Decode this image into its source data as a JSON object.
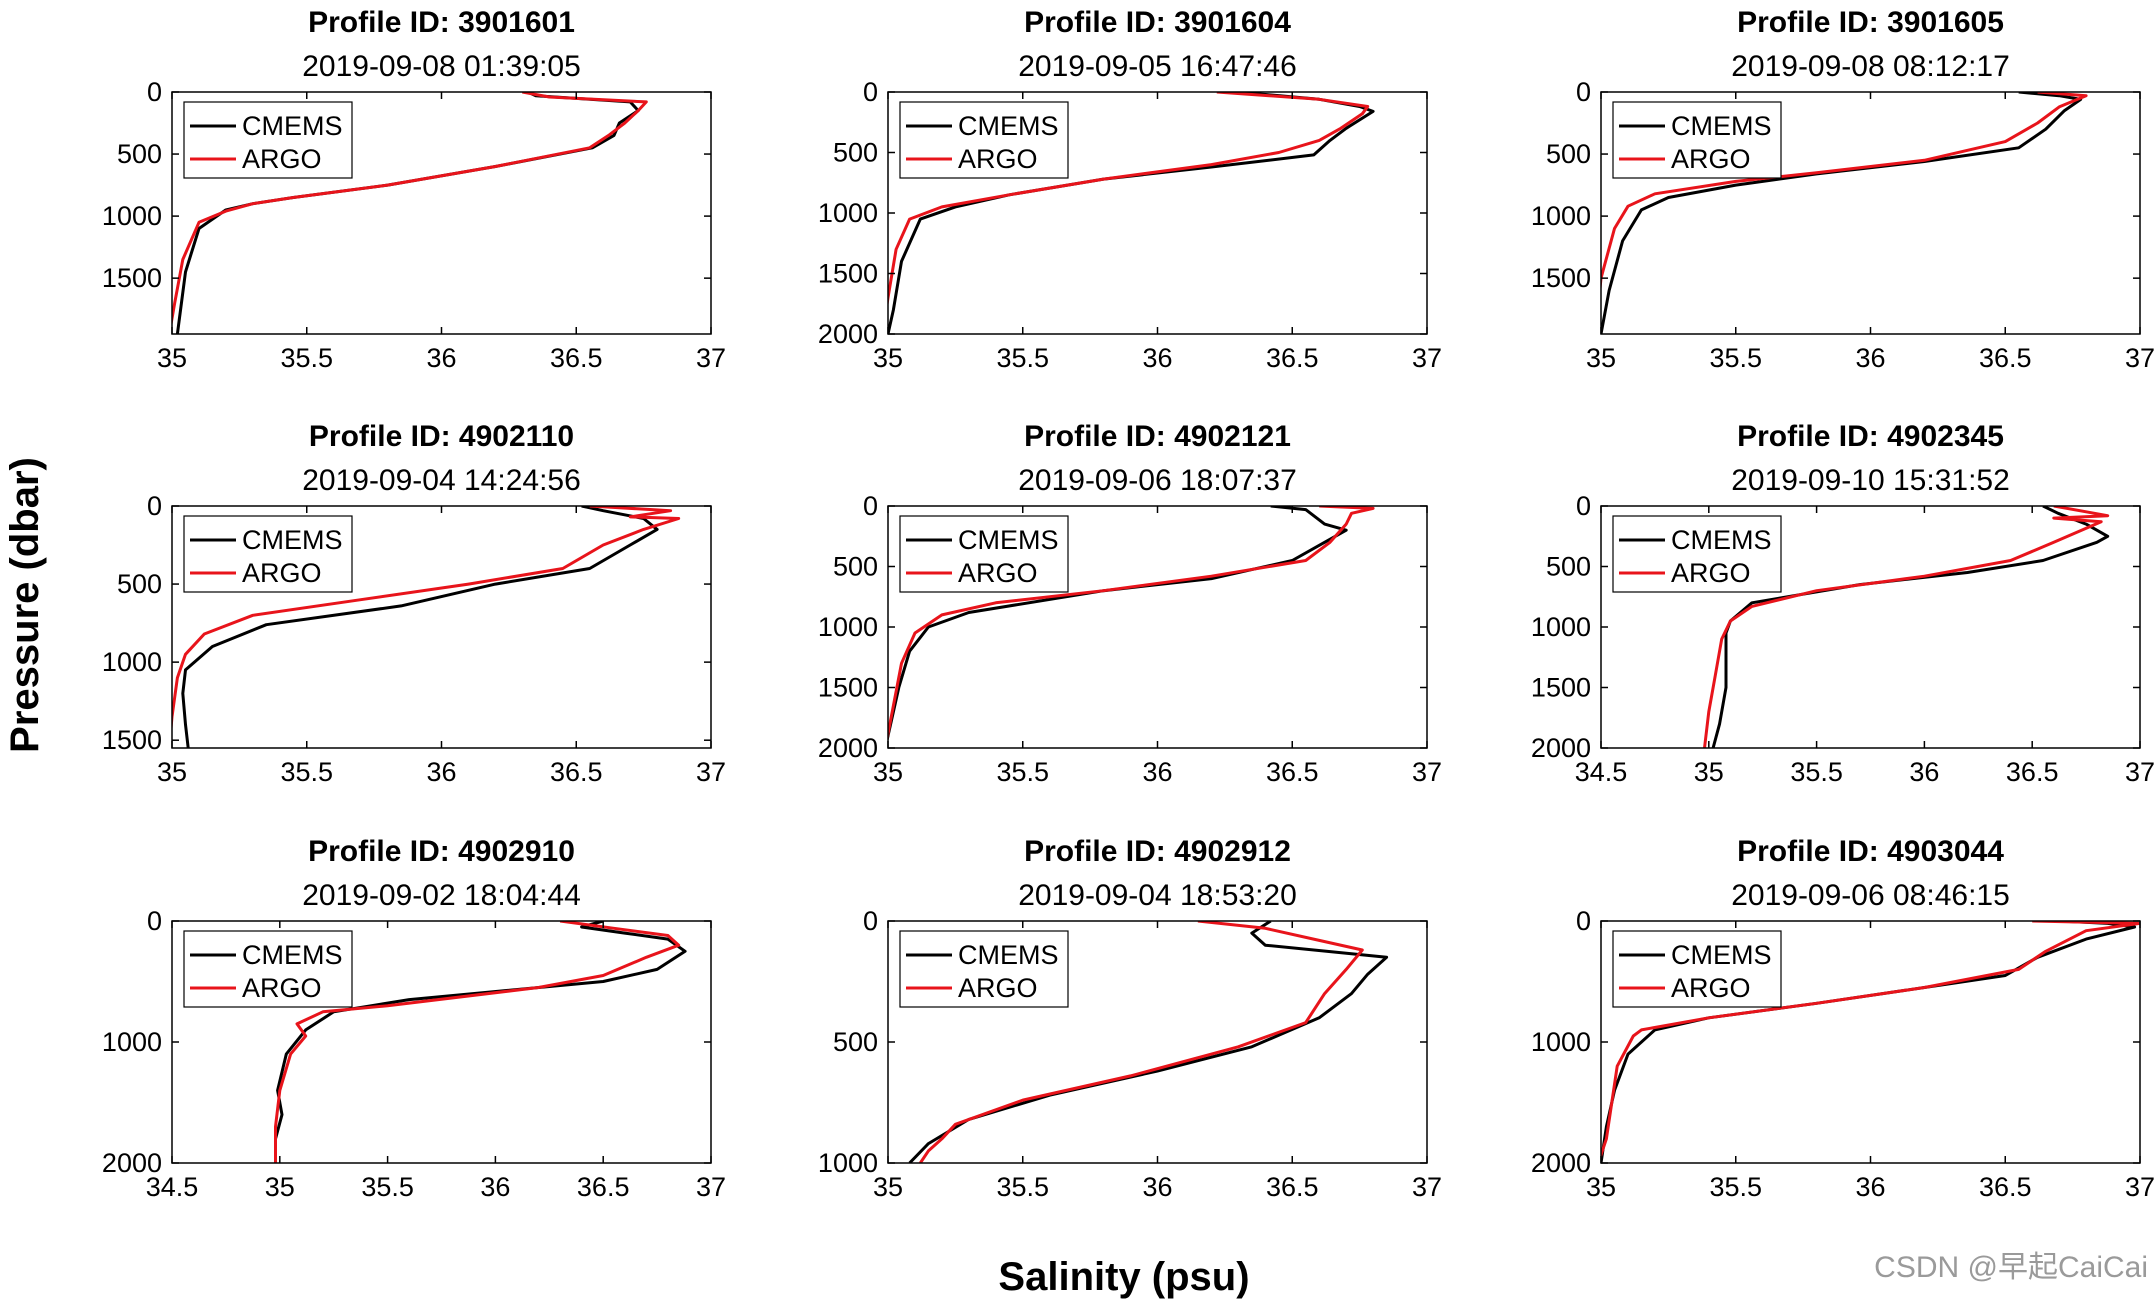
{
  "figure": {
    "ylabel": "Pressure (dbar)",
    "xlabel": "Salinity (psu)",
    "watermark": "CSDN @早起CaiCai",
    "colors": {
      "CMEMS": "#000000",
      "ARGO": "#e8141b",
      "axes": "#000000"
    }
  },
  "chart_data": [
    {
      "type": "line",
      "title": "Profile ID: 3901601",
      "subtitle": "2019-09-08 01:39:05",
      "xlim": [
        35,
        37
      ],
      "ylim": [
        0,
        1950
      ],
      "y_reversed": true,
      "xticks": [
        35,
        35.5,
        36,
        36.5,
        37
      ],
      "yticks": [
        0,
        500,
        1000,
        1500
      ],
      "legend_position": "top-left",
      "series": [
        {
          "name": "CMEMS",
          "x": [
            36.32,
            36.35,
            36.7,
            36.73,
            36.66,
            36.64,
            36.56,
            36.2,
            35.8,
            35.45,
            35.3,
            35.2,
            35.1,
            35.05,
            35.02
          ],
          "y": [
            0,
            30,
            80,
            150,
            250,
            350,
            450,
            600,
            750,
            850,
            900,
            950,
            1100,
            1450,
            1950
          ]
        },
        {
          "name": "ARGO",
          "x": [
            36.3,
            36.4,
            36.76,
            36.73,
            36.68,
            36.62,
            36.55,
            36.2,
            35.8,
            35.45,
            35.3,
            35.2,
            35.1,
            35.04,
            35.01,
            34.99
          ],
          "y": [
            0,
            40,
            80,
            150,
            250,
            350,
            450,
            600,
            750,
            850,
            900,
            960,
            1050,
            1350,
            1700,
            1950
          ]
        }
      ]
    },
    {
      "type": "line",
      "title": "Profile ID: 3901604",
      "subtitle": "2019-09-05 16:47:46",
      "xlim": [
        35,
        37
      ],
      "ylim": [
        0,
        2000
      ],
      "y_reversed": true,
      "xticks": [
        35,
        35.5,
        36,
        36.5,
        37
      ],
      "yticks": [
        0,
        500,
        1000,
        1500,
        2000
      ],
      "legend_position": "top-left",
      "series": [
        {
          "name": "CMEMS",
          "x": [
            36.3,
            36.6,
            36.75,
            36.8,
            36.7,
            36.64,
            36.58,
            36.2,
            35.8,
            35.45,
            35.25,
            35.12,
            35.05,
            35.02,
            35.0
          ],
          "y": [
            0,
            60,
            120,
            160,
            300,
            400,
            520,
            620,
            720,
            850,
            950,
            1050,
            1400,
            1800,
            2000
          ]
        },
        {
          "name": "ARGO",
          "x": [
            36.22,
            36.6,
            36.78,
            36.76,
            36.68,
            36.6,
            36.45,
            36.2,
            35.8,
            35.45,
            35.2,
            35.08,
            35.03,
            35.0,
            34.98
          ],
          "y": [
            0,
            60,
            120,
            180,
            300,
            400,
            500,
            600,
            720,
            850,
            950,
            1050,
            1300,
            1700,
            2000
          ]
        }
      ]
    },
    {
      "type": "line",
      "title": "Profile ID: 3901605",
      "subtitle": "2019-09-08 08:12:17",
      "xlim": [
        35,
        37
      ],
      "ylim": [
        0,
        1950
      ],
      "y_reversed": true,
      "xticks": [
        35,
        35.5,
        36,
        36.5,
        37
      ],
      "yticks": [
        0,
        500,
        1000,
        1500
      ],
      "legend_position": "top-left",
      "series": [
        {
          "name": "CMEMS",
          "x": [
            36.55,
            36.7,
            36.78,
            36.72,
            36.65,
            36.55,
            36.2,
            35.8,
            35.5,
            35.25,
            35.15,
            35.08,
            35.03,
            35.0
          ],
          "y": [
            0,
            30,
            60,
            150,
            300,
            450,
            560,
            660,
            750,
            850,
            950,
            1200,
            1600,
            1950
          ]
        },
        {
          "name": "ARGO",
          "x": [
            36.62,
            36.8,
            36.7,
            36.62,
            36.5,
            36.2,
            35.8,
            35.5,
            35.2,
            35.1,
            35.05,
            35.0,
            34.98
          ],
          "y": [
            0,
            30,
            120,
            250,
            400,
            550,
            650,
            720,
            820,
            920,
            1100,
            1500,
            1950
          ]
        }
      ]
    },
    {
      "type": "line",
      "title": "Profile ID: 4902110",
      "subtitle": "2019-09-04 14:24:56",
      "xlim": [
        35,
        37
      ],
      "ylim": [
        0,
        1550
      ],
      "y_reversed": true,
      "xticks": [
        35,
        35.5,
        36,
        36.5,
        37
      ],
      "yticks": [
        0,
        500,
        1000,
        1500
      ],
      "legend_position": "top-left",
      "series": [
        {
          "name": "CMEMS",
          "x": [
            36.52,
            36.6,
            36.75,
            36.8,
            36.7,
            36.55,
            36.2,
            35.85,
            35.35,
            35.15,
            35.05,
            35.04,
            35.05,
            35.06
          ],
          "y": [
            0,
            30,
            80,
            150,
            250,
            400,
            500,
            640,
            760,
            900,
            1050,
            1200,
            1400,
            1550
          ]
        },
        {
          "name": "ARGO",
          "x": [
            36.55,
            36.85,
            36.7,
            36.88,
            36.75,
            36.6,
            36.45,
            36.1,
            35.7,
            35.3,
            35.12,
            35.05,
            35.02,
            35.0,
            34.99
          ],
          "y": [
            0,
            30,
            70,
            80,
            150,
            250,
            400,
            500,
            600,
            700,
            820,
            950,
            1100,
            1350,
            1550
          ]
        }
      ]
    },
    {
      "type": "line",
      "title": "Profile ID: 4902121",
      "subtitle": "2019-09-06 18:07:37",
      "xlim": [
        35,
        37
      ],
      "ylim": [
        0,
        2000
      ],
      "y_reversed": true,
      "xticks": [
        35,
        35.5,
        36,
        36.5,
        37
      ],
      "yticks": [
        0,
        500,
        1000,
        1500,
        2000
      ],
      "legend_position": "top-left",
      "series": [
        {
          "name": "CMEMS",
          "x": [
            36.42,
            36.55,
            36.62,
            36.7,
            36.62,
            36.5,
            36.2,
            35.8,
            35.3,
            35.15,
            35.08,
            35.04,
            35.01,
            34.99
          ],
          "y": [
            0,
            30,
            150,
            200,
            300,
            450,
            600,
            700,
            880,
            1000,
            1200,
            1500,
            1800,
            2000
          ]
        },
        {
          "name": "ARGO",
          "x": [
            36.6,
            36.8,
            36.72,
            36.7,
            36.64,
            36.55,
            36.2,
            35.8,
            35.4,
            35.2,
            35.1,
            35.05,
            35.02,
            34.99
          ],
          "y": [
            0,
            20,
            60,
            150,
            300,
            450,
            580,
            700,
            800,
            900,
            1050,
            1300,
            1650,
            2000
          ]
        }
      ]
    },
    {
      "type": "line",
      "title": "Profile ID: 4902345",
      "subtitle": "2019-09-10 15:31:52",
      "xlim": [
        34.5,
        37
      ],
      "ylim": [
        0,
        2000
      ],
      "y_reversed": true,
      "xticks": [
        34.5,
        35,
        35.5,
        36,
        36.5,
        37
      ],
      "yticks": [
        0,
        500,
        1000,
        1500,
        2000
      ],
      "legend_position": "top-left",
      "series": [
        {
          "name": "CMEMS",
          "x": [
            36.55,
            36.62,
            36.75,
            36.85,
            36.8,
            36.55,
            36.2,
            35.7,
            35.2,
            35.1,
            35.08,
            35.08,
            35.05,
            35.02
          ],
          "y": [
            0,
            60,
            150,
            250,
            300,
            450,
            550,
            650,
            800,
            950,
            1050,
            1500,
            1800,
            2000
          ]
        },
        {
          "name": "ARGO",
          "x": [
            36.6,
            36.85,
            36.6,
            36.82,
            36.6,
            36.4,
            36.0,
            35.5,
            35.2,
            35.1,
            35.06,
            35.03,
            35.0,
            34.98
          ],
          "y": [
            0,
            80,
            100,
            130,
            300,
            450,
            580,
            700,
            830,
            950,
            1100,
            1400,
            1700,
            2000
          ]
        }
      ]
    },
    {
      "type": "line",
      "title": "Profile ID: 4902910",
      "subtitle": "2019-09-02 18:04:44",
      "xlim": [
        34.5,
        37
      ],
      "ylim": [
        0,
        2000
      ],
      "y_reversed": true,
      "xticks": [
        34.5,
        35,
        35.5,
        36,
        36.5,
        37
      ],
      "yticks": [
        0,
        1000,
        2000
      ],
      "legend_position": "top-left",
      "series": [
        {
          "name": "CMEMS",
          "x": [
            36.5,
            36.4,
            36.6,
            36.8,
            36.88,
            36.75,
            36.5,
            35.6,
            35.25,
            35.12,
            35.03,
            34.99,
            35.01,
            34.98,
            34.98
          ],
          "y": [
            0,
            50,
            100,
            150,
            250,
            400,
            500,
            650,
            750,
            900,
            1100,
            1400,
            1600,
            1800,
            2000
          ]
        },
        {
          "name": "ARGO",
          "x": [
            36.3,
            36.55,
            36.8,
            36.85,
            36.7,
            36.5,
            36.2,
            35.5,
            35.2,
            35.08,
            35.12,
            35.05,
            35.0,
            34.98,
            34.98
          ],
          "y": [
            0,
            60,
            120,
            200,
            300,
            450,
            550,
            700,
            750,
            850,
            950,
            1100,
            1400,
            1700,
            2000
          ]
        }
      ]
    },
    {
      "type": "line",
      "title": "Profile ID: 4902912",
      "subtitle": "2019-09-04 18:53:20",
      "xlim": [
        35,
        37
      ],
      "ylim": [
        0,
        1000
      ],
      "y_reversed": true,
      "xticks": [
        35,
        35.5,
        36,
        36.5,
        37
      ],
      "yticks": [
        0,
        500,
        1000
      ],
      "legend_position": "top-left",
      "series": [
        {
          "name": "CMEMS",
          "x": [
            36.42,
            36.35,
            36.4,
            36.85,
            36.78,
            36.72,
            36.6,
            36.35,
            36.0,
            35.6,
            35.3,
            35.15,
            35.08
          ],
          "y": [
            0,
            50,
            100,
            150,
            220,
            300,
            400,
            520,
            620,
            720,
            820,
            920,
            1000
          ]
        },
        {
          "name": "ARGO",
          "x": [
            36.15,
            36.4,
            36.6,
            36.76,
            36.7,
            36.62,
            36.55,
            36.3,
            35.9,
            35.5,
            35.25,
            35.2,
            35.15,
            35.12
          ],
          "y": [
            0,
            30,
            80,
            120,
            200,
            300,
            420,
            520,
            640,
            740,
            840,
            900,
            950,
            1000
          ]
        }
      ]
    },
    {
      "type": "line",
      "title": "Profile ID: 4903044",
      "subtitle": "2019-09-06 08:46:15",
      "xlim": [
        35,
        37
      ],
      "ylim": [
        0,
        2000
      ],
      "y_reversed": true,
      "xticks": [
        35,
        35.5,
        36,
        36.5,
        37
      ],
      "yticks": [
        0,
        1000,
        2000
      ],
      "legend_position": "top-left",
      "series": [
        {
          "name": "CMEMS",
          "x": [
            36.7,
            36.88,
            36.98,
            36.8,
            36.62,
            36.5,
            36.2,
            35.8,
            35.4,
            35.2,
            35.1,
            35.05,
            35.02,
            35.0
          ],
          "y": [
            0,
            20,
            50,
            150,
            300,
            450,
            550,
            680,
            800,
            900,
            1100,
            1400,
            1700,
            2000
          ]
        },
        {
          "name": "ARGO",
          "x": [
            36.6,
            37.0,
            36.8,
            36.65,
            36.55,
            36.2,
            35.8,
            35.4,
            35.15,
            35.12,
            35.06,
            35.04,
            35.02,
            34.99
          ],
          "y": [
            0,
            20,
            80,
            250,
            400,
            550,
            680,
            800,
            900,
            950,
            1200,
            1500,
            1800,
            2000
          ]
        }
      ]
    }
  ]
}
